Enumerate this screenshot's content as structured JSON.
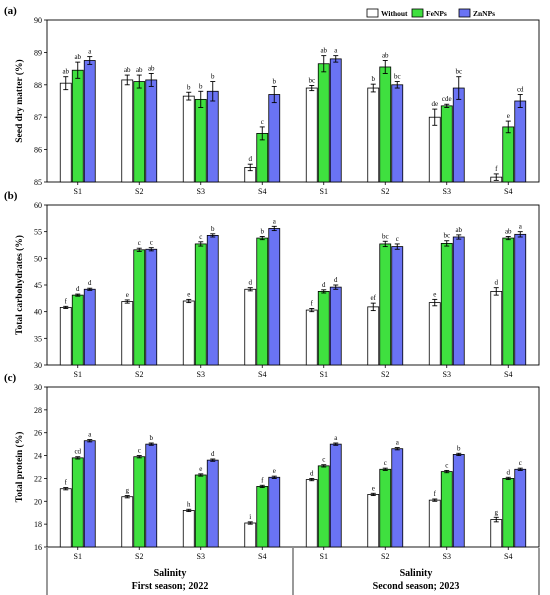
{
  "legend": [
    "Without",
    "FeNPs",
    "ZnNPs"
  ],
  "colors": {
    "Without": "#ffffff",
    "FeNPs": "#3fe03f",
    "ZnNPs": "#6a73f4"
  },
  "footer": {
    "season1_line1": "Salinity",
    "season1_line2": "First season; 2022",
    "season2_line1": "Salinity",
    "season2_line2": "Second season; 2023"
  },
  "chart_data": [
    {
      "panel": "(a)",
      "type": "bar",
      "ylabel": "Seed dry matter (%)",
      "ylim": [
        85,
        90
      ],
      "yticks": [
        85,
        86,
        87,
        88,
        89,
        90
      ],
      "categories": [
        "S1",
        "S2",
        "S3",
        "S4",
        "S1",
        "S2",
        "S3",
        "S4"
      ],
      "series": [
        {
          "name": "Without",
          "values": [
            88.05,
            88.15,
            87.65,
            85.45,
            87.9,
            87.9,
            87.0,
            85.15
          ],
          "errors": [
            0.2,
            0.15,
            0.12,
            0.1,
            0.08,
            0.12,
            0.25,
            0.1
          ],
          "labels": [
            "ab",
            "ab",
            "b",
            "d",
            "bc",
            "b",
            "de",
            "f"
          ]
        },
        {
          "name": "FeNPs",
          "values": [
            88.45,
            88.1,
            87.55,
            86.5,
            88.65,
            88.55,
            87.35,
            86.7
          ],
          "errors": [
            0.25,
            0.2,
            0.25,
            0.2,
            0.25,
            0.2,
            0.05,
            0.18
          ],
          "labels": [
            "ab",
            "ab",
            "b",
            "c",
            "ab",
            "ab",
            "cde",
            "e"
          ]
        },
        {
          "name": "ZnNPs",
          "values": [
            88.75,
            88.15,
            87.8,
            87.7,
            88.8,
            88.0,
            87.9,
            87.5
          ],
          "errors": [
            0.12,
            0.2,
            0.3,
            0.25,
            0.1,
            0.1,
            0.35,
            0.2
          ],
          "labels": [
            "a",
            "ab",
            "b",
            "b",
            "a",
            "bc",
            "bc",
            "cd"
          ]
        }
      ]
    },
    {
      "panel": "(b)",
      "type": "bar",
      "ylabel": "Total carbohydrates (%)",
      "ylim": [
        30,
        60
      ],
      "yticks": [
        30,
        35,
        40,
        45,
        50,
        55,
        60
      ],
      "categories": [
        "S1",
        "S2",
        "S3",
        "S4",
        "S1",
        "S2",
        "S3",
        "S4"
      ],
      "series": [
        {
          "name": "Without",
          "values": [
            40.8,
            41.9,
            42.0,
            44.2,
            40.3,
            40.9,
            41.7,
            43.8
          ],
          "errors": [
            0.2,
            0.3,
            0.3,
            0.3,
            0.3,
            0.7,
            0.6,
            0.7
          ],
          "labels": [
            "f",
            "e",
            "e",
            "d",
            "f",
            "ef",
            "e",
            "d"
          ]
        },
        {
          "name": "FeNPs",
          "values": [
            43.1,
            51.6,
            52.7,
            53.8,
            43.8,
            52.7,
            52.8,
            53.8
          ],
          "errors": [
            0.2,
            0.3,
            0.4,
            0.3,
            0.3,
            0.5,
            0.5,
            0.3
          ],
          "labels": [
            "d",
            "c",
            "c",
            "b",
            "d",
            "bc",
            "bc",
            "ab"
          ]
        },
        {
          "name": "ZnNPs",
          "values": [
            44.2,
            51.7,
            54.3,
            55.6,
            44.6,
            52.2,
            54.0,
            54.5
          ],
          "errors": [
            0.2,
            0.3,
            0.3,
            0.4,
            0.4,
            0.5,
            0.4,
            0.5
          ],
          "labels": [
            "d",
            "c",
            "b",
            "a",
            "d",
            "c",
            "ab",
            "a"
          ]
        }
      ]
    },
    {
      "panel": "(c)",
      "type": "bar",
      "ylabel": "Total protein (%)",
      "ylim": [
        16,
        30
      ],
      "yticks": [
        16,
        18,
        20,
        22,
        24,
        26,
        28,
        30
      ],
      "categories": [
        "S1",
        "S2",
        "S3",
        "S4",
        "S1",
        "S2",
        "S3",
        "S4"
      ],
      "series": [
        {
          "name": "Without",
          "values": [
            21.1,
            20.4,
            19.2,
            18.1,
            21.9,
            20.6,
            20.1,
            18.4
          ],
          "errors": [
            0.1,
            0.1,
            0.1,
            0.1,
            0.1,
            0.1,
            0.1,
            0.2
          ],
          "labels": [
            "f",
            "g",
            "h",
            "i",
            "d",
            "e",
            "f",
            "g"
          ]
        },
        {
          "name": "FeNPs",
          "values": [
            23.8,
            23.9,
            22.3,
            21.3,
            23.1,
            22.8,
            22.6,
            22.0
          ],
          "errors": [
            0.1,
            0.1,
            0.1,
            0.1,
            0.1,
            0.1,
            0.1,
            0.1
          ],
          "labels": [
            "cd",
            "c",
            "e",
            "f",
            "c",
            "c",
            "c",
            "d"
          ]
        },
        {
          "name": "ZnNPs",
          "values": [
            25.3,
            25.0,
            23.6,
            22.1,
            25.0,
            24.6,
            24.1,
            22.8
          ],
          "errors": [
            0.1,
            0.1,
            0.1,
            0.1,
            0.1,
            0.1,
            0.1,
            0.1
          ],
          "labels": [
            "a",
            "b",
            "d",
            "e",
            "a",
            "a",
            "b",
            "c"
          ]
        }
      ]
    }
  ]
}
